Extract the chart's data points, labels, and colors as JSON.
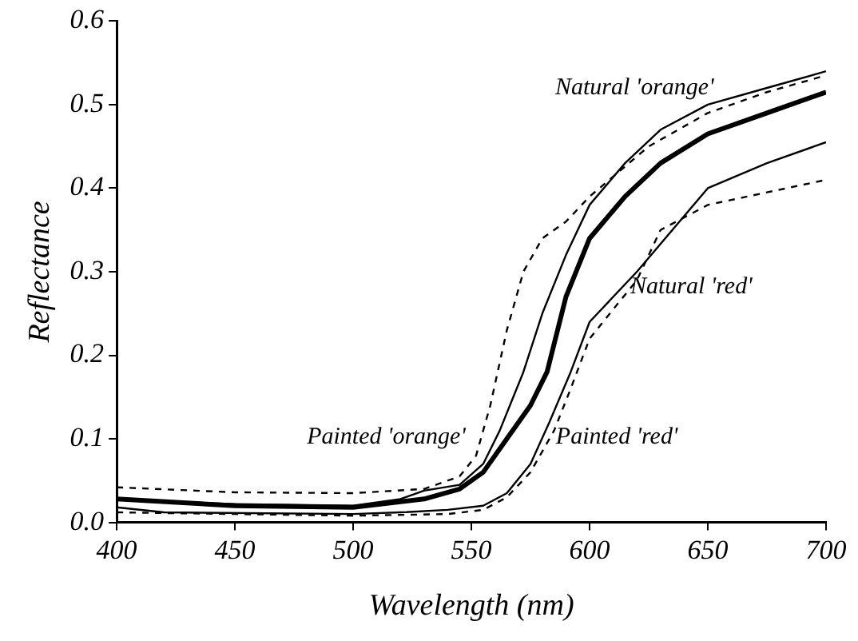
{
  "chart_data": {
    "type": "line",
    "xlabel": "Wavelength (nm)",
    "ylabel": "Reflectance",
    "xlim": [
      400,
      700
    ],
    "xticks": [
      400,
      450,
      500,
      550,
      600,
      650,
      700
    ],
    "ylim": [
      0,
      0.6
    ],
    "yticks": [
      {
        "value": 0,
        "label": "0.0"
      },
      0.1,
      0.2,
      0.3,
      0.4,
      0.5,
      0.6
    ],
    "grid": false,
    "legend": false,
    "marker": "none",
    "series": [
      {
        "name": "Natural 'orange'",
        "color": "#000000",
        "line_style": "solid",
        "x": [
          400,
          420,
          450,
          500,
          520,
          530,
          545,
          555,
          562,
          572,
          580,
          590,
          600,
          615,
          630,
          650,
          675,
          700
        ],
        "values": [
          0.028,
          0.025,
          0.022,
          0.02,
          0.028,
          0.038,
          0.045,
          0.07,
          0.11,
          0.18,
          0.25,
          0.32,
          0.38,
          0.43,
          0.47,
          0.5,
          0.52,
          0.54
        ]
      },
      {
        "name": "Painted 'orange'",
        "color": "#000000",
        "line_style": "dashed",
        "x": [
          400,
          450,
          500,
          530,
          545,
          552,
          558,
          565,
          572,
          580,
          590,
          600,
          625,
          650,
          675,
          700
        ],
        "values": [
          0.042,
          0.036,
          0.035,
          0.04,
          0.055,
          0.08,
          0.14,
          0.23,
          0.3,
          0.34,
          0.36,
          0.39,
          0.45,
          0.49,
          0.515,
          0.535
        ]
      },
      {
        "color": "#000000",
        "line_style": "solid",
        "x": [
          400,
          450,
          500,
          530,
          545,
          555,
          565,
          575,
          582,
          590,
          600,
          615,
          630,
          650,
          675,
          700
        ],
        "values": [
          0.028,
          0.02,
          0.018,
          0.028,
          0.04,
          0.06,
          0.1,
          0.14,
          0.18,
          0.27,
          0.34,
          0.39,
          0.43,
          0.465,
          0.49,
          0.515
        ]
      },
      {
        "name": "Natural 'red'",
        "color": "#000000",
        "line_style": "solid",
        "x": [
          400,
          420,
          500,
          520,
          540,
          555,
          565,
          575,
          583,
          592,
          600,
          620,
          650,
          675,
          700
        ],
        "values": [
          0.018,
          0.012,
          0.01,
          0.012,
          0.015,
          0.02,
          0.035,
          0.07,
          0.12,
          0.18,
          0.24,
          0.3,
          0.4,
          0.43,
          0.455
        ]
      },
      {
        "name": "Painted 'red'",
        "color": "#000000",
        "line_style": "dashed",
        "x": [
          400,
          450,
          500,
          540,
          555,
          565,
          575,
          585,
          592,
          600,
          620,
          630,
          650,
          675,
          700
        ],
        "values": [
          0.012,
          0.01,
          0.008,
          0.01,
          0.015,
          0.03,
          0.06,
          0.11,
          0.16,
          0.22,
          0.29,
          0.35,
          0.38,
          0.395,
          0.41
        ]
      }
    ]
  }
}
